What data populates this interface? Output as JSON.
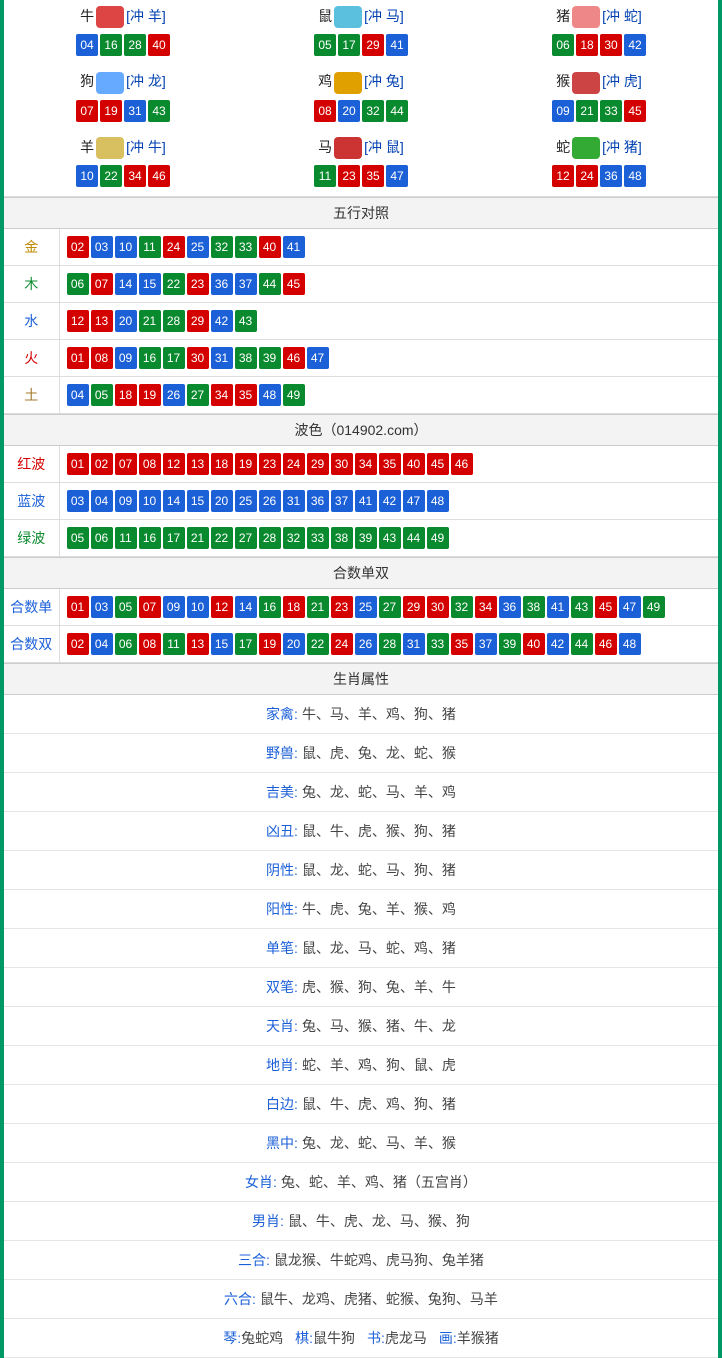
{
  "colors": {
    "red": "#d40000",
    "blue": "#1c60d8",
    "green": "#0a8a2e",
    "frame": "#009966"
  },
  "zodiac": [
    {
      "name": "牛",
      "conflict": "[冲 羊]",
      "icon_color": "#d44",
      "balls": [
        {
          "n": "04",
          "c": "blue"
        },
        {
          "n": "16",
          "c": "green"
        },
        {
          "n": "28",
          "c": "green"
        },
        {
          "n": "40",
          "c": "red"
        }
      ]
    },
    {
      "name": "鼠",
      "conflict": "[冲 马]",
      "icon_color": "#5bc0de",
      "balls": [
        {
          "n": "05",
          "c": "green"
        },
        {
          "n": "17",
          "c": "green"
        },
        {
          "n": "29",
          "c": "red"
        },
        {
          "n": "41",
          "c": "blue"
        }
      ]
    },
    {
      "name": "猪",
      "conflict": "[冲 蛇]",
      "icon_color": "#e88",
      "balls": [
        {
          "n": "06",
          "c": "green"
        },
        {
          "n": "18",
          "c": "red"
        },
        {
          "n": "30",
          "c": "red"
        },
        {
          "n": "42",
          "c": "blue"
        }
      ]
    },
    {
      "name": "狗",
      "conflict": "[冲 龙]",
      "icon_color": "#6af",
      "balls": [
        {
          "n": "07",
          "c": "red"
        },
        {
          "n": "19",
          "c": "red"
        },
        {
          "n": "31",
          "c": "blue"
        },
        {
          "n": "43",
          "c": "green"
        }
      ]
    },
    {
      "name": "鸡",
      "conflict": "[冲 兔]",
      "icon_color": "#e0a000",
      "balls": [
        {
          "n": "08",
          "c": "red"
        },
        {
          "n": "20",
          "c": "blue"
        },
        {
          "n": "32",
          "c": "green"
        },
        {
          "n": "44",
          "c": "green"
        }
      ]
    },
    {
      "name": "猴",
      "conflict": "[冲 虎]",
      "icon_color": "#c44",
      "balls": [
        {
          "n": "09",
          "c": "blue"
        },
        {
          "n": "21",
          "c": "green"
        },
        {
          "n": "33",
          "c": "green"
        },
        {
          "n": "45",
          "c": "red"
        }
      ]
    },
    {
      "name": "羊",
      "conflict": "[冲 牛]",
      "icon_color": "#d8c060",
      "balls": [
        {
          "n": "10",
          "c": "blue"
        },
        {
          "n": "22",
          "c": "green"
        },
        {
          "n": "34",
          "c": "red"
        },
        {
          "n": "46",
          "c": "red"
        }
      ]
    },
    {
      "name": "马",
      "conflict": "[冲 鼠]",
      "icon_color": "#c33",
      "balls": [
        {
          "n": "11",
          "c": "green"
        },
        {
          "n": "23",
          "c": "red"
        },
        {
          "n": "35",
          "c": "red"
        },
        {
          "n": "47",
          "c": "blue"
        }
      ]
    },
    {
      "name": "蛇",
      "conflict": "[冲 猪]",
      "icon_color": "#3a3",
      "balls": [
        {
          "n": "12",
          "c": "red"
        },
        {
          "n": "24",
          "c": "red"
        },
        {
          "n": "36",
          "c": "blue"
        },
        {
          "n": "48",
          "c": "blue"
        }
      ]
    }
  ],
  "wuxing_header": "五行对照",
  "wuxing": [
    {
      "label": "金",
      "cls": "lbl-jin",
      "balls": [
        {
          "n": "02",
          "c": "red"
        },
        {
          "n": "03",
          "c": "blue"
        },
        {
          "n": "10",
          "c": "blue"
        },
        {
          "n": "11",
          "c": "green"
        },
        {
          "n": "24",
          "c": "red"
        },
        {
          "n": "25",
          "c": "blue"
        },
        {
          "n": "32",
          "c": "green"
        },
        {
          "n": "33",
          "c": "green"
        },
        {
          "n": "40",
          "c": "red"
        },
        {
          "n": "41",
          "c": "blue"
        }
      ]
    },
    {
      "label": "木",
      "cls": "lbl-mu",
      "balls": [
        {
          "n": "06",
          "c": "green"
        },
        {
          "n": "07",
          "c": "red"
        },
        {
          "n": "14",
          "c": "blue"
        },
        {
          "n": "15",
          "c": "blue"
        },
        {
          "n": "22",
          "c": "green"
        },
        {
          "n": "23",
          "c": "red"
        },
        {
          "n": "36",
          "c": "blue"
        },
        {
          "n": "37",
          "c": "blue"
        },
        {
          "n": "44",
          "c": "green"
        },
        {
          "n": "45",
          "c": "red"
        }
      ]
    },
    {
      "label": "水",
      "cls": "lbl-shui",
      "balls": [
        {
          "n": "12",
          "c": "red"
        },
        {
          "n": "13",
          "c": "red"
        },
        {
          "n": "20",
          "c": "blue"
        },
        {
          "n": "21",
          "c": "green"
        },
        {
          "n": "28",
          "c": "green"
        },
        {
          "n": "29",
          "c": "red"
        },
        {
          "n": "42",
          "c": "blue"
        },
        {
          "n": "43",
          "c": "green"
        }
      ]
    },
    {
      "label": "火",
      "cls": "lbl-huo",
      "balls": [
        {
          "n": "01",
          "c": "red"
        },
        {
          "n": "08",
          "c": "red"
        },
        {
          "n": "09",
          "c": "blue"
        },
        {
          "n": "16",
          "c": "green"
        },
        {
          "n": "17",
          "c": "green"
        },
        {
          "n": "30",
          "c": "red"
        },
        {
          "n": "31",
          "c": "blue"
        },
        {
          "n": "38",
          "c": "green"
        },
        {
          "n": "39",
          "c": "green"
        },
        {
          "n": "46",
          "c": "red"
        },
        {
          "n": "47",
          "c": "blue"
        }
      ]
    },
    {
      "label": "土",
      "cls": "lbl-tu",
      "balls": [
        {
          "n": "04",
          "c": "blue"
        },
        {
          "n": "05",
          "c": "green"
        },
        {
          "n": "18",
          "c": "red"
        },
        {
          "n": "19",
          "c": "red"
        },
        {
          "n": "26",
          "c": "blue"
        },
        {
          "n": "27",
          "c": "green"
        },
        {
          "n": "34",
          "c": "red"
        },
        {
          "n": "35",
          "c": "red"
        },
        {
          "n": "48",
          "c": "blue"
        },
        {
          "n": "49",
          "c": "green"
        }
      ]
    }
  ],
  "bose_header": "波色（014902.com）",
  "bose": [
    {
      "label": "红波",
      "cls": "lbl-red",
      "balls": [
        {
          "n": "01",
          "c": "red"
        },
        {
          "n": "02",
          "c": "red"
        },
        {
          "n": "07",
          "c": "red"
        },
        {
          "n": "08",
          "c": "red"
        },
        {
          "n": "12",
          "c": "red"
        },
        {
          "n": "13",
          "c": "red"
        },
        {
          "n": "18",
          "c": "red"
        },
        {
          "n": "19",
          "c": "red"
        },
        {
          "n": "23",
          "c": "red"
        },
        {
          "n": "24",
          "c": "red"
        },
        {
          "n": "29",
          "c": "red"
        },
        {
          "n": "30",
          "c": "red"
        },
        {
          "n": "34",
          "c": "red"
        },
        {
          "n": "35",
          "c": "red"
        },
        {
          "n": "40",
          "c": "red"
        },
        {
          "n": "45",
          "c": "red"
        },
        {
          "n": "46",
          "c": "red"
        }
      ]
    },
    {
      "label": "蓝波",
      "cls": "lbl-blue",
      "balls": [
        {
          "n": "03",
          "c": "blue"
        },
        {
          "n": "04",
          "c": "blue"
        },
        {
          "n": "09",
          "c": "blue"
        },
        {
          "n": "10",
          "c": "blue"
        },
        {
          "n": "14",
          "c": "blue"
        },
        {
          "n": "15",
          "c": "blue"
        },
        {
          "n": "20",
          "c": "blue"
        },
        {
          "n": "25",
          "c": "blue"
        },
        {
          "n": "26",
          "c": "blue"
        },
        {
          "n": "31",
          "c": "blue"
        },
        {
          "n": "36",
          "c": "blue"
        },
        {
          "n": "37",
          "c": "blue"
        },
        {
          "n": "41",
          "c": "blue"
        },
        {
          "n": "42",
          "c": "blue"
        },
        {
          "n": "47",
          "c": "blue"
        },
        {
          "n": "48",
          "c": "blue"
        }
      ]
    },
    {
      "label": "绿波",
      "cls": "lbl-green",
      "balls": [
        {
          "n": "05",
          "c": "green"
        },
        {
          "n": "06",
          "c": "green"
        },
        {
          "n": "11",
          "c": "green"
        },
        {
          "n": "16",
          "c": "green"
        },
        {
          "n": "17",
          "c": "green"
        },
        {
          "n": "21",
          "c": "green"
        },
        {
          "n": "22",
          "c": "green"
        },
        {
          "n": "27",
          "c": "green"
        },
        {
          "n": "28",
          "c": "green"
        },
        {
          "n": "32",
          "c": "green"
        },
        {
          "n": "33",
          "c": "green"
        },
        {
          "n": "38",
          "c": "green"
        },
        {
          "n": "39",
          "c": "green"
        },
        {
          "n": "43",
          "c": "green"
        },
        {
          "n": "44",
          "c": "green"
        },
        {
          "n": "49",
          "c": "green"
        }
      ]
    }
  ],
  "heshu_header": "合数单双",
  "heshu": [
    {
      "label": "合数单",
      "cls": "lbl-blue",
      "balls": [
        {
          "n": "01",
          "c": "red"
        },
        {
          "n": "03",
          "c": "blue"
        },
        {
          "n": "05",
          "c": "green"
        },
        {
          "n": "07",
          "c": "red"
        },
        {
          "n": "09",
          "c": "blue"
        },
        {
          "n": "10",
          "c": "blue"
        },
        {
          "n": "12",
          "c": "red"
        },
        {
          "n": "14",
          "c": "blue"
        },
        {
          "n": "16",
          "c": "green"
        },
        {
          "n": "18",
          "c": "red"
        },
        {
          "n": "21",
          "c": "green"
        },
        {
          "n": "23",
          "c": "red"
        },
        {
          "n": "25",
          "c": "blue"
        },
        {
          "n": "27",
          "c": "green"
        },
        {
          "n": "29",
          "c": "red"
        },
        {
          "n": "30",
          "c": "red"
        },
        {
          "n": "32",
          "c": "green"
        },
        {
          "n": "34",
          "c": "red"
        },
        {
          "n": "36",
          "c": "blue"
        },
        {
          "n": "38",
          "c": "green"
        },
        {
          "n": "41",
          "c": "blue"
        },
        {
          "n": "43",
          "c": "green"
        },
        {
          "n": "45",
          "c": "red"
        },
        {
          "n": "47",
          "c": "blue"
        },
        {
          "n": "49",
          "c": "green"
        }
      ]
    },
    {
      "label": "合数双",
      "cls": "lbl-blue",
      "balls": [
        {
          "n": "02",
          "c": "red"
        },
        {
          "n": "04",
          "c": "blue"
        },
        {
          "n": "06",
          "c": "green"
        },
        {
          "n": "08",
          "c": "red"
        },
        {
          "n": "11",
          "c": "green"
        },
        {
          "n": "13",
          "c": "red"
        },
        {
          "n": "15",
          "c": "blue"
        },
        {
          "n": "17",
          "c": "green"
        },
        {
          "n": "19",
          "c": "red"
        },
        {
          "n": "20",
          "c": "blue"
        },
        {
          "n": "22",
          "c": "green"
        },
        {
          "n": "24",
          "c": "red"
        },
        {
          "n": "26",
          "c": "blue"
        },
        {
          "n": "28",
          "c": "green"
        },
        {
          "n": "31",
          "c": "blue"
        },
        {
          "n": "33",
          "c": "green"
        },
        {
          "n": "35",
          "c": "red"
        },
        {
          "n": "37",
          "c": "blue"
        },
        {
          "n": "39",
          "c": "green"
        },
        {
          "n": "40",
          "c": "red"
        },
        {
          "n": "42",
          "c": "blue"
        },
        {
          "n": "44",
          "c": "green"
        },
        {
          "n": "46",
          "c": "red"
        },
        {
          "n": "48",
          "c": "blue"
        }
      ]
    }
  ],
  "attr_header": "生肖属性",
  "attrs": [
    {
      "key": "家禽:",
      "val": "牛、马、羊、鸡、狗、猪"
    },
    {
      "key": "野兽:",
      "val": "鼠、虎、兔、龙、蛇、猴"
    },
    {
      "key": "吉美:",
      "val": "兔、龙、蛇、马、羊、鸡"
    },
    {
      "key": "凶丑:",
      "val": "鼠、牛、虎、猴、狗、猪"
    },
    {
      "key": "阴性:",
      "val": "鼠、龙、蛇、马、狗、猪"
    },
    {
      "key": "阳性:",
      "val": "牛、虎、兔、羊、猴、鸡"
    },
    {
      "key": "单笔:",
      "val": "鼠、龙、马、蛇、鸡、猪"
    },
    {
      "key": "双笔:",
      "val": "虎、猴、狗、兔、羊、牛"
    },
    {
      "key": "天肖:",
      "val": "兔、马、猴、猪、牛、龙"
    },
    {
      "key": "地肖:",
      "val": "蛇、羊、鸡、狗、鼠、虎"
    },
    {
      "key": "白边:",
      "val": "鼠、牛、虎、鸡、狗、猪"
    },
    {
      "key": "黑中:",
      "val": "兔、龙、蛇、马、羊、猴"
    },
    {
      "key": "女肖:",
      "val": "兔、蛇、羊、鸡、猪（五宫肖）"
    },
    {
      "key": "男肖:",
      "val": "鼠、牛、虎、龙、马、猴、狗"
    },
    {
      "key": "三合:",
      "val": "鼠龙猴、牛蛇鸡、虎马狗、兔羊猪"
    },
    {
      "key": "六合:",
      "val": "鼠牛、龙鸡、虎猪、蛇猴、兔狗、马羊"
    }
  ],
  "four": [
    {
      "k": "琴:",
      "v": "兔蛇鸡"
    },
    {
      "k": "棋:",
      "v": "鼠牛狗"
    },
    {
      "k": "书:",
      "v": "虎龙马"
    },
    {
      "k": "画:",
      "v": "羊猴猪"
    }
  ]
}
